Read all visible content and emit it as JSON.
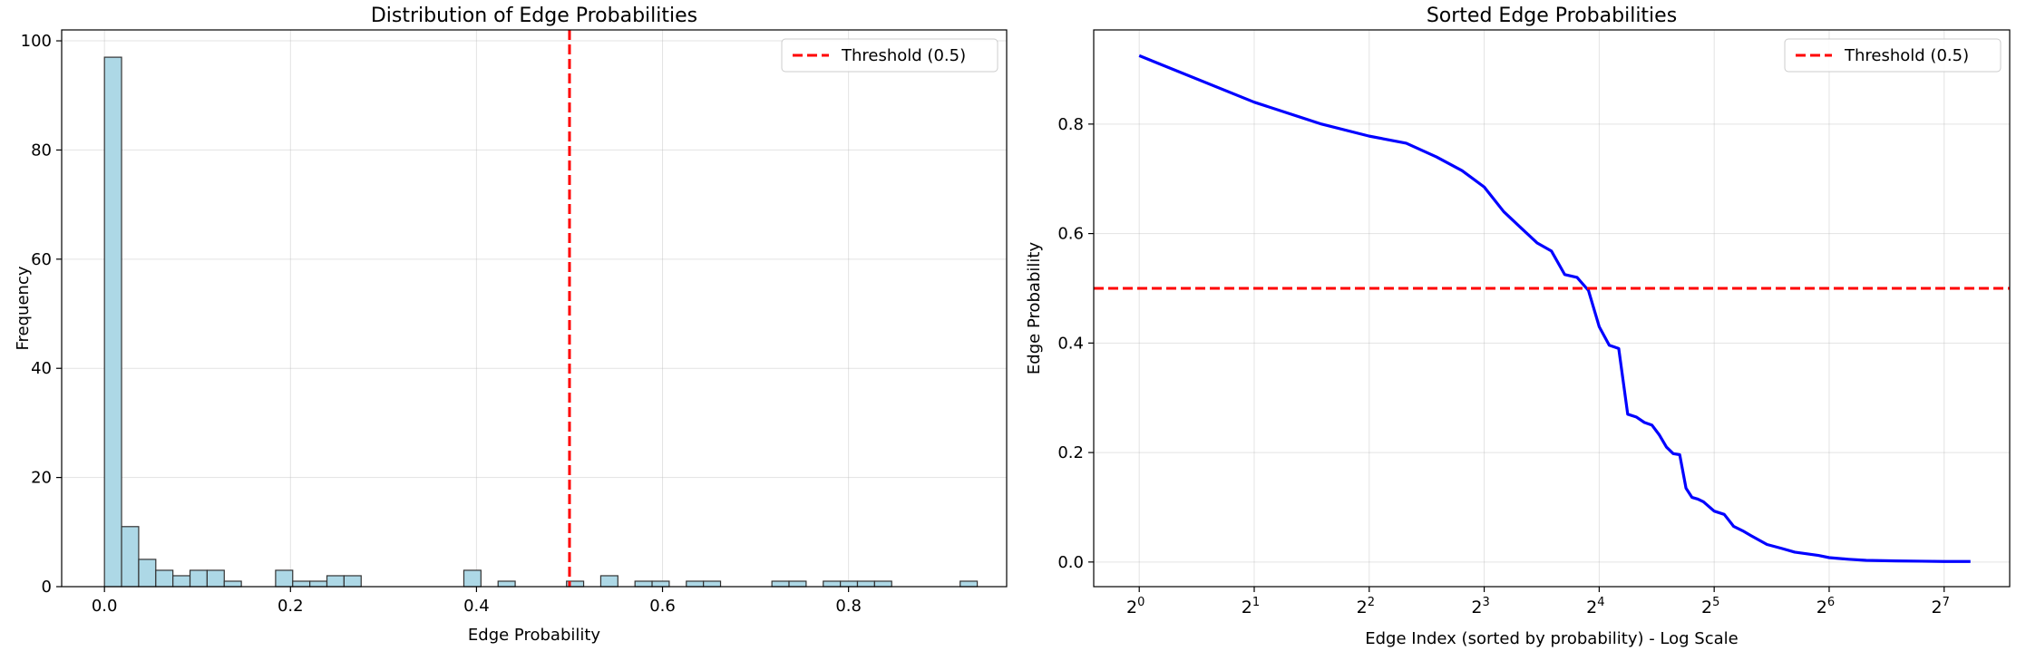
{
  "chart_data": [
    {
      "type": "bar",
      "title": "Distribution of Edge Probabilities",
      "xlabel": "Edge Probability",
      "ylabel": "Frequency",
      "xlim": [
        -0.046,
        0.97
      ],
      "ylim": [
        0,
        102
      ],
      "xticks": [
        0.0,
        0.2,
        0.4,
        0.6,
        0.8
      ],
      "xtick_labels": [
        "0.0",
        "0.2",
        "0.4",
        "0.6",
        "0.8"
      ],
      "yticks": [
        0,
        20,
        40,
        60,
        80,
        100
      ],
      "ytick_labels": [
        "0",
        "20",
        "40",
        "60",
        "80",
        "100"
      ],
      "grid": true,
      "bin_width": 0.0184,
      "bin_start": 0.0,
      "counts": [
        97,
        11,
        5,
        3,
        2,
        3,
        3,
        1,
        0,
        0,
        3,
        1,
        1,
        2,
        2,
        0,
        0,
        0,
        0,
        0,
        0,
        3,
        0,
        1,
        0,
        0,
        0,
        1,
        0,
        2,
        0,
        1,
        1,
        0,
        1,
        1,
        0,
        0,
        0,
        1,
        1,
        0,
        1,
        1,
        1,
        1,
        0,
        0,
        0,
        0,
        1
      ],
      "bar_color": "#add8e6",
      "edge_color": "#333333",
      "threshold": {
        "value": 0.5,
        "label": "Threshold (0.5)",
        "color": "#ff0000"
      },
      "legend_position": "top-right"
    },
    {
      "type": "line",
      "title": "Sorted Edge Probabilities",
      "xlabel": "Edge Index (sorted by probability) - Log Scale",
      "ylabel": "Edge Probability",
      "xscale": "log2",
      "xlim": [
        0.76,
        190
      ],
      "ylim": [
        -0.045,
        0.972
      ],
      "xtick_labels": [
        {
          "base": "2",
          "exp": "0"
        },
        {
          "base": "2",
          "exp": "1"
        },
        {
          "base": "2",
          "exp": "2"
        },
        {
          "base": "2",
          "exp": "3"
        },
        {
          "base": "2",
          "exp": "4"
        },
        {
          "base": "2",
          "exp": "5"
        },
        {
          "base": "2",
          "exp": "6"
        },
        {
          "base": "2",
          "exp": "7"
        }
      ],
      "xticks": [
        1,
        2,
        4,
        8,
        16,
        32,
        64,
        128
      ],
      "yticks": [
        0.0,
        0.2,
        0.4,
        0.6,
        0.8
      ],
      "ytick_labels": [
        "0.0",
        "0.2",
        "0.4",
        "0.6",
        "0.8"
      ],
      "grid": true,
      "series": [
        {
          "color": "#0000ff",
          "x": [
            1,
            2,
            3,
            4,
            5,
            6,
            7,
            8,
            9,
            10,
            11,
            12,
            13,
            14,
            15,
            16,
            17,
            18,
            19,
            20,
            21,
            22,
            23,
            24,
            25,
            26,
            27,
            28,
            29,
            30,
            32,
            34,
            36,
            38,
            40,
            44,
            48,
            52,
            56,
            60,
            64,
            72,
            80,
            96,
            112,
            128,
            150
          ],
          "y": [
            0.925,
            0.84,
            0.8,
            0.778,
            0.765,
            0.74,
            0.715,
            0.685,
            0.64,
            0.61,
            0.583,
            0.568,
            0.525,
            0.52,
            0.496,
            0.43,
            0.396,
            0.39,
            0.27,
            0.265,
            0.255,
            0.25,
            0.232,
            0.21,
            0.198,
            0.196,
            0.135,
            0.118,
            0.115,
            0.11,
            0.093,
            0.087,
            0.065,
            0.057,
            0.048,
            0.032,
            0.025,
            0.018,
            0.015,
            0.012,
            0.008,
            0.005,
            0.003,
            0.002,
            0.0015,
            0.001,
            0.001
          ]
        }
      ],
      "threshold": {
        "value": 0.5,
        "label": "Threshold (0.5)",
        "color": "#ff0000"
      },
      "legend_position": "top-right"
    }
  ]
}
